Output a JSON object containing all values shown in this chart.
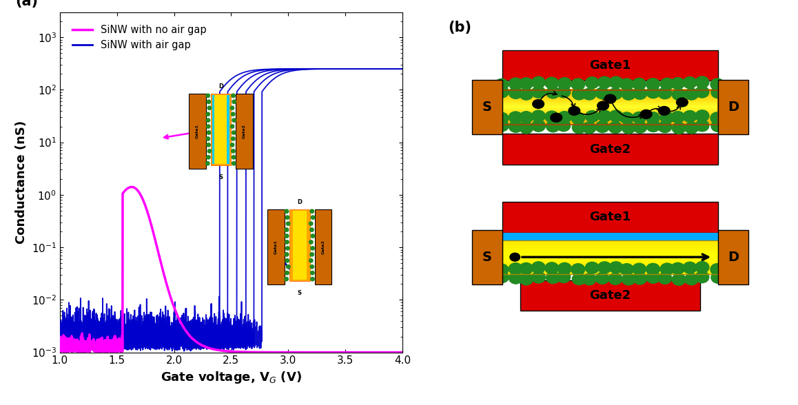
{
  "title_a": "(a)",
  "title_b": "(b)",
  "xlabel": "Gate voltage, V$_G$ (V)",
  "ylabel": "Conductance (nS)",
  "xlim": [
    1.0,
    4.0
  ],
  "legend_no_air": "SiNW with no air gap",
  "legend_air": "SiNW with air gap",
  "magenta_color": "#FF00FF",
  "blue_color": "#0000CC",
  "gate_red": "#DD0000",
  "sd_orange": "#CC6600",
  "nanowire_orange": "#FFA500",
  "nanowire_yellow": "#FFE000",
  "nanowire_bright": "#FFFF80",
  "green_blob": "#228B22",
  "air_gap_blue": "#00AAFF",
  "background_color": "#FFFFFF"
}
